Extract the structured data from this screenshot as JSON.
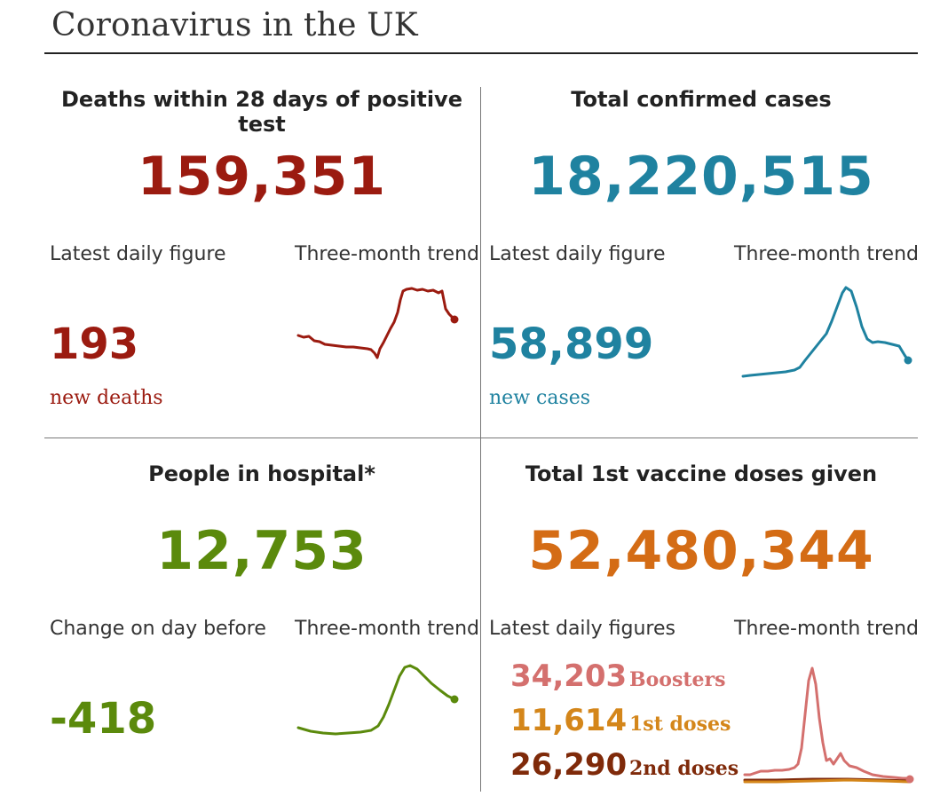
{
  "title": "Coronavirus in the UK",
  "colors": {
    "deaths": "#9b1b10",
    "cases": "#1f82a0",
    "hospital": "#5b8a0c",
    "vaccine": "#d46c15",
    "boosters": "#d4706e",
    "first_doses": "#d4861a",
    "second_doses": "#7f2a0a"
  },
  "deaths": {
    "title": "Deaths within 28 days of positive test",
    "total": "159,351",
    "latest_label": "Latest daily figure",
    "trend_label": "Three-month trend",
    "latest": "193",
    "sub": "new deaths"
  },
  "cases": {
    "title": "Total confirmed cases",
    "total": "18,220,515",
    "latest_label": "Latest daily figure",
    "trend_label": "Three-month trend",
    "latest": "58,899",
    "sub": "new cases"
  },
  "hospital": {
    "title": "People in hospital*",
    "total": "12,753",
    "latest_label": "Change on day before",
    "trend_label": "Three-month trend",
    "latest": "-418"
  },
  "vaccine": {
    "title": "Total 1st vaccine doses given",
    "total": "52,480,344",
    "latest_label": "Latest daily figures",
    "trend_label": "Three-month trend",
    "doses": [
      {
        "value": "34,203",
        "label": "Boosters"
      },
      {
        "value": "11,614",
        "label": "1st doses"
      },
      {
        "value": "26,290",
        "label": "2nd doses"
      }
    ]
  }
}
